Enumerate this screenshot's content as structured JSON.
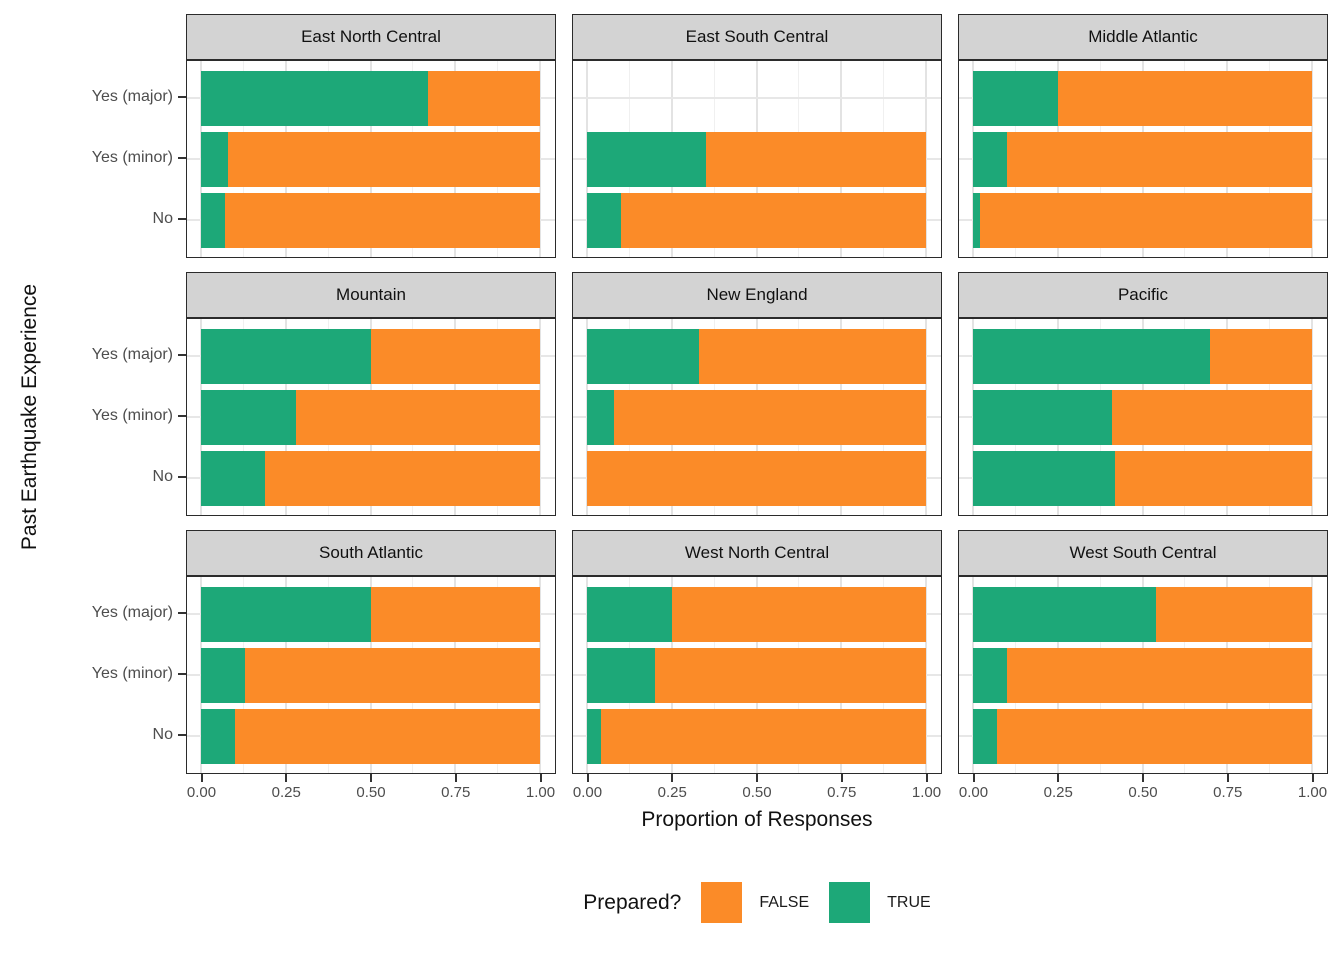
{
  "colors": {
    "true_fill": "#1DA878",
    "false_fill": "#FB8B28",
    "strip_bg": "#D3D3D3",
    "panel_border": "#2B2B2B",
    "grid_major": "#E3E3E3",
    "grid_minor": "#F0F0F0",
    "tick_text": "#4D4D4D",
    "title_text": "#111111"
  },
  "chart_data": {
    "type": "bar",
    "subtype": "faceted-horizontal-stacked-proportion",
    "title": "",
    "xlabel": "Proportion of Responses",
    "ylabel": "Past Earthquake Experience",
    "xlim": [
      0,
      1
    ],
    "x_ticks": [
      "0.00",
      "0.25",
      "0.50",
      "0.75",
      "1.00"
    ],
    "x_tick_values": [
      0,
      0.25,
      0.5,
      0.75,
      1.0
    ],
    "categories": [
      "Yes (major)",
      "Yes (minor)",
      "No"
    ],
    "grid": true,
    "legend": {
      "title": "Prepared?",
      "position": "bottom",
      "entries": [
        {
          "label": "FALSE",
          "color": "#FB8B28"
        },
        {
          "label": "TRUE",
          "color": "#1DA878"
        }
      ]
    },
    "facets": [
      {
        "name": "East North Central",
        "series": [
          {
            "name": "TRUE",
            "values": [
              0.67,
              0.08,
              0.07
            ]
          },
          {
            "name": "FALSE",
            "values": [
              0.33,
              0.92,
              0.93
            ]
          }
        ]
      },
      {
        "name": "East South Central",
        "series": [
          {
            "name": "TRUE",
            "values": [
              null,
              0.35,
              0.1
            ]
          },
          {
            "name": "FALSE",
            "values": [
              null,
              0.65,
              0.9
            ]
          }
        ]
      },
      {
        "name": "Middle Atlantic",
        "series": [
          {
            "name": "TRUE",
            "values": [
              0.25,
              0.1,
              0.02
            ]
          },
          {
            "name": "FALSE",
            "values": [
              0.75,
              0.9,
              0.98
            ]
          }
        ]
      },
      {
        "name": "Mountain",
        "series": [
          {
            "name": "TRUE",
            "values": [
              0.5,
              0.28,
              0.19
            ]
          },
          {
            "name": "FALSE",
            "values": [
              0.5,
              0.72,
              0.81
            ]
          }
        ]
      },
      {
        "name": "New England",
        "series": [
          {
            "name": "TRUE",
            "values": [
              0.33,
              0.08,
              0.0
            ]
          },
          {
            "name": "FALSE",
            "values": [
              0.67,
              0.92,
              1.0
            ]
          }
        ]
      },
      {
        "name": "Pacific",
        "series": [
          {
            "name": "TRUE",
            "values": [
              0.7,
              0.41,
              0.42
            ]
          },
          {
            "name": "FALSE",
            "values": [
              0.3,
              0.59,
              0.58
            ]
          }
        ]
      },
      {
        "name": "South Atlantic",
        "series": [
          {
            "name": "TRUE",
            "values": [
              0.5,
              0.13,
              0.1
            ]
          },
          {
            "name": "FALSE",
            "values": [
              0.5,
              0.87,
              0.9
            ]
          }
        ]
      },
      {
        "name": "West North Central",
        "series": [
          {
            "name": "TRUE",
            "values": [
              0.25,
              0.2,
              0.04
            ]
          },
          {
            "name": "FALSE",
            "values": [
              0.75,
              0.8,
              0.96
            ]
          }
        ]
      },
      {
        "name": "West South Central",
        "series": [
          {
            "name": "TRUE",
            "values": [
              0.54,
              0.1,
              0.07
            ]
          },
          {
            "name": "FALSE",
            "values": [
              0.46,
              0.9,
              0.93
            ]
          }
        ]
      }
    ]
  }
}
